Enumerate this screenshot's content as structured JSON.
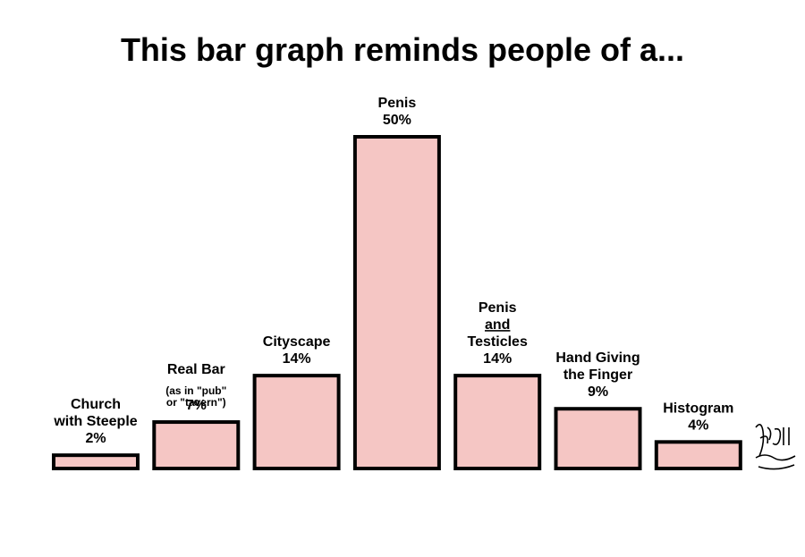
{
  "chart_data": {
    "type": "bar",
    "title": "This bar graph reminds people of a...",
    "categories": [
      [
        "Church",
        "with Steeple"
      ],
      [
        "Real Bar"
      ],
      [
        "Cityscape"
      ],
      [
        "Penis"
      ],
      [
        "Penis",
        "and",
        "Testicles"
      ],
      [
        "Hand Giving",
        "the Finger"
      ],
      [
        "Histogram"
      ]
    ],
    "category_notes": [
      null,
      [
        "(as in \"pub\"",
        "or \"tavern\")"
      ],
      null,
      null,
      null,
      null,
      null
    ],
    "values": [
      2,
      7,
      14,
      50,
      14,
      9,
      4
    ],
    "value_labels": [
      "2%",
      "7%",
      "14%",
      "50%",
      "14%",
      "9%",
      "4%"
    ],
    "color": "#f5c6c4"
  }
}
